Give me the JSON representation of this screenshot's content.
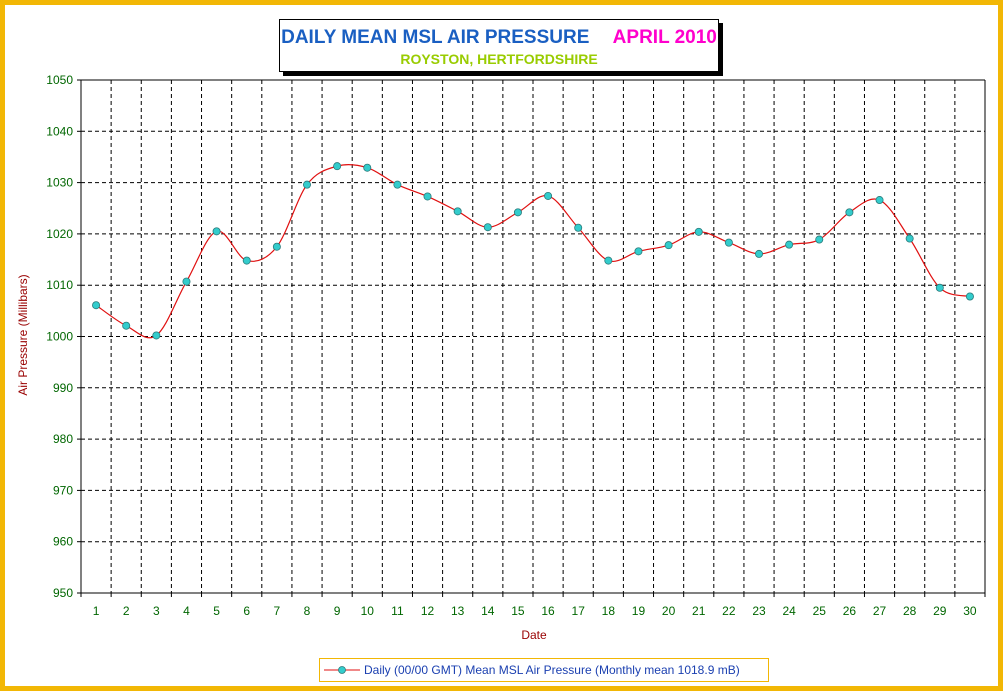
{
  "title": "DAILY MEAN MSL AIR PRESSURE",
  "month": "APRIL 2010",
  "subtitle": "ROYSTON, HERTFORDSHIRE",
  "colors": {
    "border": "#f2b705",
    "title": "#1a5fc2",
    "month": "#ff00cc",
    "subtitle": "#99cc00",
    "line": "#e01010",
    "marker": "#33cccc",
    "axis_label": "#990000",
    "tick_label": "#006600"
  },
  "chart_data": {
    "type": "line",
    "xlabel": "Date",
    "ylabel": "Air Pressure (Millibars)",
    "ylim": [
      950,
      1050
    ],
    "yticks": [
      950,
      960,
      970,
      980,
      990,
      1000,
      1010,
      1020,
      1030,
      1040,
      1050
    ],
    "x": [
      1,
      2,
      3,
      4,
      5,
      6,
      7,
      8,
      9,
      10,
      11,
      12,
      13,
      14,
      15,
      16,
      17,
      18,
      19,
      20,
      21,
      22,
      23,
      24,
      25,
      26,
      27,
      28,
      29,
      30
    ],
    "grid": true,
    "legend_position": "bottom",
    "series": [
      {
        "name": "Daily (00/00 GMT) Mean MSL Air Pressure (Monthly mean 1018.9 mB)",
        "values": [
          1006.1,
          1002.1,
          1000.2,
          1010.7,
          1020.5,
          1014.8,
          1017.5,
          1029.6,
          1033.2,
          1032.9,
          1029.6,
          1027.3,
          1024.4,
          1021.3,
          1024.2,
          1027.4,
          1021.2,
          1014.8,
          1016.6,
          1017.8,
          1020.4,
          1018.3,
          1016.1,
          1017.9,
          1018.9,
          1024.2,
          1026.6,
          1019.1,
          1009.5,
          1007.8
        ]
      }
    ]
  }
}
